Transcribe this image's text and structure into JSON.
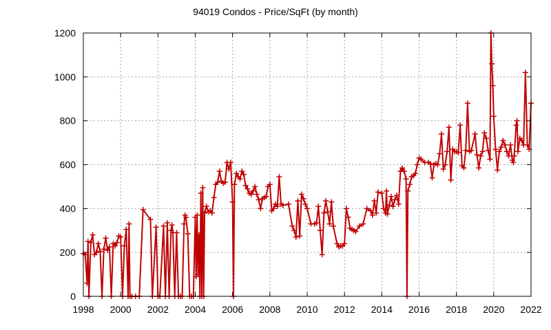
{
  "chart_data": {
    "type": "line",
    "title": "94019 Condos - Price/SqFt (by month)",
    "xlabel": "",
    "ylabel": "",
    "xlim": [
      1998,
      2022
    ],
    "ylim": [
      0,
      1200
    ],
    "x_ticks": [
      1998,
      2000,
      2002,
      2004,
      2006,
      2008,
      2010,
      2012,
      2014,
      2016,
      2018,
      2020,
      2022
    ],
    "y_ticks": [
      0,
      200,
      400,
      600,
      800,
      1000,
      1200
    ],
    "x_tick_labels": [
      "1998",
      "2000",
      "2002",
      "2004",
      "2006",
      "2008",
      "2010",
      "2012",
      "2014",
      "2016",
      "2018",
      "2020",
      "2022"
    ],
    "y_tick_labels": [
      "0",
      "200",
      "400",
      "600",
      "800",
      "1000",
      "1200"
    ],
    "grid": true,
    "legend": "none",
    "colors": {
      "series": "#c00000",
      "grid": "#a0a0a0",
      "frame": "#000000"
    },
    "series": [
      {
        "points": [
          [
            1998.0,
            195
          ],
          [
            1998.1,
            190
          ],
          [
            1998.2,
            60
          ],
          [
            1998.25,
            250
          ],
          [
            1998.3,
            0
          ],
          [
            1998.4,
            245
          ],
          [
            1998.5,
            280
          ],
          [
            1998.6,
            190
          ],
          [
            1998.7,
            200
          ],
          [
            1998.8,
            240
          ],
          [
            1998.9,
            205
          ],
          [
            1999.0,
            0
          ],
          [
            1999.1,
            215
          ],
          [
            1999.2,
            265
          ],
          [
            1999.3,
            210
          ],
          [
            1999.4,
            225
          ],
          [
            1999.5,
            0
          ],
          [
            1999.6,
            240
          ],
          [
            1999.7,
            230
          ],
          [
            1999.8,
            245
          ],
          [
            1999.9,
            275
          ],
          [
            2000.0,
            270
          ],
          [
            2000.1,
            0
          ],
          [
            2000.2,
            230
          ],
          [
            2000.3,
            305
          ],
          [
            2000.4,
            0
          ],
          [
            2000.45,
            330
          ],
          [
            2000.5,
            0
          ],
          [
            2000.6,
            0
          ],
          [
            2000.8,
            0
          ],
          [
            2001.0,
            0
          ],
          [
            2001.2,
            395
          ],
          [
            2001.6,
            350
          ],
          [
            2001.7,
            0
          ],
          [
            2001.9,
            315
          ],
          [
            2002.0,
            0
          ],
          [
            2002.1,
            0
          ],
          [
            2002.3,
            320
          ],
          [
            2002.4,
            0
          ],
          [
            2002.5,
            335
          ],
          [
            2002.6,
            0
          ],
          [
            2002.7,
            300
          ],
          [
            2002.75,
            325
          ],
          [
            2002.8,
            290
          ],
          [
            2002.9,
            0
          ],
          [
            2003.0,
            290
          ],
          [
            2003.1,
            0
          ],
          [
            2003.2,
            0
          ],
          [
            2003.3,
            0
          ],
          [
            2003.4,
            330
          ],
          [
            2003.45,
            370
          ],
          [
            2003.5,
            360
          ],
          [
            2003.6,
            285
          ],
          [
            2003.7,
            0
          ],
          [
            2003.8,
            0
          ],
          [
            2003.9,
            0
          ],
          [
            2004.0,
            360
          ],
          [
            2004.05,
            90
          ],
          [
            2004.1,
            370
          ],
          [
            2004.15,
            100
          ],
          [
            2004.2,
            280
          ],
          [
            2004.25,
            0
          ],
          [
            2004.3,
            470
          ],
          [
            2004.35,
            0
          ],
          [
            2004.4,
            495
          ],
          [
            2004.45,
            0
          ],
          [
            2004.5,
            380
          ],
          [
            2004.6,
            410
          ],
          [
            2004.7,
            385
          ],
          [
            2004.8,
            390
          ],
          [
            2004.9,
            380
          ],
          [
            2005.0,
            450
          ],
          [
            2005.1,
            510
          ],
          [
            2005.2,
            520
          ],
          [
            2005.3,
            570
          ],
          [
            2005.4,
            525
          ],
          [
            2005.5,
            515
          ],
          [
            2005.6,
            520
          ],
          [
            2005.7,
            610
          ],
          [
            2005.8,
            580
          ],
          [
            2005.9,
            610
          ],
          [
            2006.0,
            430
          ],
          [
            2006.05,
            0
          ],
          [
            2006.1,
            510
          ],
          [
            2006.2,
            560
          ],
          [
            2006.3,
            545
          ],
          [
            2006.4,
            535
          ],
          [
            2006.5,
            570
          ],
          [
            2006.6,
            555
          ],
          [
            2006.7,
            505
          ],
          [
            2006.8,
            490
          ],
          [
            2006.9,
            470
          ],
          [
            2007.0,
            465
          ],
          [
            2007.1,
            480
          ],
          [
            2007.2,
            500
          ],
          [
            2007.3,
            465
          ],
          [
            2007.4,
            440
          ],
          [
            2007.5,
            400
          ],
          [
            2007.6,
            445
          ],
          [
            2007.7,
            450
          ],
          [
            2007.8,
            455
          ],
          [
            2007.9,
            500
          ],
          [
            2008.0,
            510
          ],
          [
            2008.1,
            390
          ],
          [
            2008.2,
            400
          ],
          [
            2008.3,
            420
          ],
          [
            2008.4,
            410
          ],
          [
            2008.5,
            545
          ],
          [
            2008.6,
            420
          ],
          [
            2008.7,
            415
          ],
          [
            2009.0,
            420
          ],
          [
            2009.2,
            320
          ],
          [
            2009.3,
            300
          ],
          [
            2009.4,
            270
          ],
          [
            2009.5,
            435
          ],
          [
            2009.6,
            275
          ],
          [
            2009.7,
            465
          ],
          [
            2009.8,
            445
          ],
          [
            2009.9,
            420
          ],
          [
            2010.0,
            400
          ],
          [
            2010.2,
            330
          ],
          [
            2010.4,
            330
          ],
          [
            2010.5,
            335
          ],
          [
            2010.6,
            410
          ],
          [
            2010.7,
            300
          ],
          [
            2010.8,
            190
          ],
          [
            2010.9,
            380
          ],
          [
            2011.0,
            435
          ],
          [
            2011.1,
            385
          ],
          [
            2011.2,
            330
          ],
          [
            2011.3,
            430
          ],
          [
            2011.4,
            320
          ],
          [
            2011.6,
            240
          ],
          [
            2011.7,
            225
          ],
          [
            2011.8,
            230
          ],
          [
            2011.9,
            230
          ],
          [
            2012.0,
            240
          ],
          [
            2012.1,
            400
          ],
          [
            2012.2,
            360
          ],
          [
            2012.3,
            310
          ],
          [
            2012.4,
            305
          ],
          [
            2012.5,
            300
          ],
          [
            2012.6,
            295
          ],
          [
            2012.8,
            320
          ],
          [
            2013.0,
            330
          ],
          [
            2013.2,
            400
          ],
          [
            2013.4,
            390
          ],
          [
            2013.5,
            370
          ],
          [
            2013.6,
            435
          ],
          [
            2013.7,
            380
          ],
          [
            2013.8,
            475
          ],
          [
            2014.0,
            470
          ],
          [
            2014.1,
            400
          ],
          [
            2014.2,
            380
          ],
          [
            2014.25,
            480
          ],
          [
            2014.3,
            375
          ],
          [
            2014.4,
            415
          ],
          [
            2014.5,
            455
          ],
          [
            2014.6,
            410
          ],
          [
            2014.7,
            440
          ],
          [
            2014.8,
            460
          ],
          [
            2014.9,
            420
          ],
          [
            2015.0,
            570
          ],
          [
            2015.1,
            585
          ],
          [
            2015.2,
            570
          ],
          [
            2015.3,
            535
          ],
          [
            2015.35,
            0
          ],
          [
            2015.4,
            480
          ],
          [
            2015.5,
            510
          ],
          [
            2015.6,
            545
          ],
          [
            2015.7,
            550
          ],
          [
            2015.8,
            560
          ],
          [
            2015.9,
            600
          ],
          [
            2016.0,
            630
          ],
          [
            2016.1,
            625
          ],
          [
            2016.3,
            610
          ],
          [
            2016.5,
            610
          ],
          [
            2016.6,
            605
          ],
          [
            2016.7,
            540
          ],
          [
            2016.8,
            600
          ],
          [
            2016.9,
            605
          ],
          [
            2017.0,
            600
          ],
          [
            2017.1,
            650
          ],
          [
            2017.2,
            740
          ],
          [
            2017.3,
            580
          ],
          [
            2017.4,
            600
          ],
          [
            2017.5,
            660
          ],
          [
            2017.6,
            770
          ],
          [
            2017.7,
            530
          ],
          [
            2017.8,
            670
          ],
          [
            2017.9,
            660
          ],
          [
            2018.0,
            660
          ],
          [
            2018.1,
            655
          ],
          [
            2018.2,
            780
          ],
          [
            2018.3,
            595
          ],
          [
            2018.4,
            585
          ],
          [
            2018.5,
            665
          ],
          [
            2018.6,
            880
          ],
          [
            2018.7,
            660
          ],
          [
            2018.8,
            665
          ],
          [
            2019.0,
            740
          ],
          [
            2019.1,
            645
          ],
          [
            2019.2,
            585
          ],
          [
            2019.3,
            640
          ],
          [
            2019.4,
            660
          ],
          [
            2019.5,
            745
          ],
          [
            2019.6,
            720
          ],
          [
            2019.7,
            665
          ],
          [
            2019.8,
            625
          ],
          [
            2019.85,
            1200
          ],
          [
            2019.9,
            1060
          ],
          [
            2019.95,
            960
          ],
          [
            2020.0,
            820
          ],
          [
            2020.1,
            670
          ],
          [
            2020.2,
            575
          ],
          [
            2020.3,
            660
          ],
          [
            2020.4,
            680
          ],
          [
            2020.5,
            710
          ],
          [
            2020.6,
            690
          ],
          [
            2020.7,
            660
          ],
          [
            2020.8,
            640
          ],
          [
            2020.9,
            690
          ],
          [
            2021.0,
            620
          ],
          [
            2021.05,
            610
          ],
          [
            2021.1,
            640
          ],
          [
            2021.2,
            780
          ],
          [
            2021.25,
            800
          ],
          [
            2021.3,
            660
          ],
          [
            2021.4,
            720
          ],
          [
            2021.5,
            710
          ],
          [
            2021.6,
            690
          ],
          [
            2021.7,
            1020
          ],
          [
            2021.8,
            690
          ],
          [
            2021.9,
            670
          ],
          [
            2022.0,
            880
          ]
        ]
      }
    ]
  }
}
